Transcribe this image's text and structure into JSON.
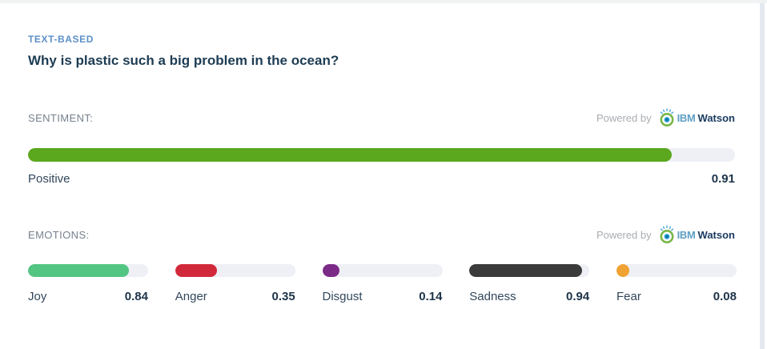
{
  "page": {
    "category_label": "TEXT-BASED",
    "title": "Why is plastic such a big problem in the ocean?"
  },
  "branding": {
    "powered_by": "Powered by",
    "ibm": "IBM",
    "watson": "Watson"
  },
  "sentiment": {
    "section_label": "SENTIMENT:",
    "label": "Positive",
    "value": "0.91",
    "percent": 91,
    "color": "#5ba81f"
  },
  "emotions": {
    "section_label": "EMOTIONS:",
    "items": [
      {
        "label": "Joy",
        "value": "0.84",
        "percent": 84,
        "color": "#53c583"
      },
      {
        "label": "Anger",
        "value": "0.35",
        "percent": 35,
        "color": "#d2293a"
      },
      {
        "label": "Disgust",
        "value": "0.14",
        "percent": 14,
        "color": "#7c2a87"
      },
      {
        "label": "Sadness",
        "value": "0.94",
        "percent": 94,
        "color": "#3b3b3b"
      },
      {
        "label": "Fear",
        "value": "0.08",
        "percent": 8,
        "color": "#f0a232"
      }
    ]
  },
  "colors": {
    "track": "#eef0f6",
    "category_blue": "#5b8fc9",
    "title_dark": "#1d3c53",
    "section_gray": "#76818e",
    "value_dark": "#1d3349",
    "top_border": "#f1f2f4",
    "right_strip": "#e4e8ef"
  },
  "chart_data": [
    {
      "type": "bar",
      "title": "SENTIMENT:",
      "categories": [
        "Positive"
      ],
      "values": [
        0.91
      ],
      "value_range": [
        0,
        1
      ],
      "orientation": "horizontal"
    },
    {
      "type": "bar",
      "title": "EMOTIONS:",
      "categories": [
        "Joy",
        "Anger",
        "Disgust",
        "Sadness",
        "Fear"
      ],
      "values": [
        0.84,
        0.35,
        0.14,
        0.94,
        0.08
      ],
      "value_range": [
        0,
        1
      ],
      "orientation": "horizontal"
    }
  ]
}
